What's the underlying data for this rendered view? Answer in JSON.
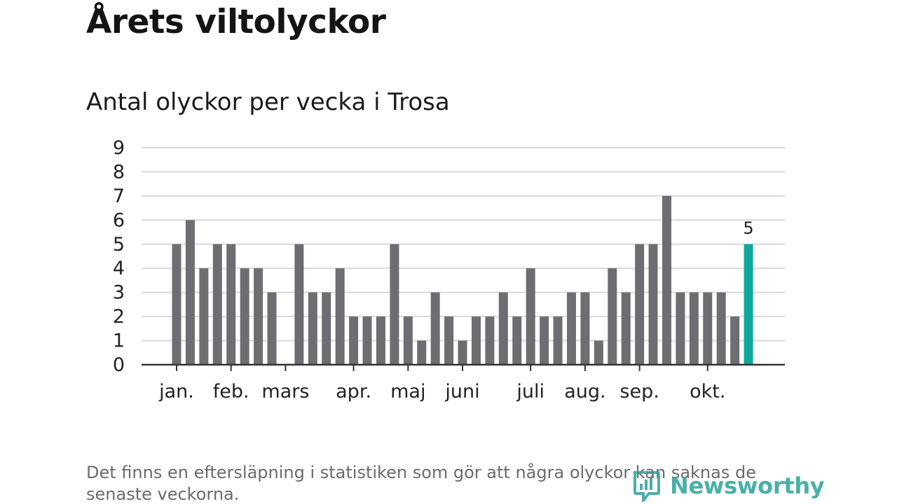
{
  "title": "Årets viltolyckor",
  "subtitle": "Antal olyckor per vecka i Trosa",
  "footnote": "Det finns en eftersläpning i statistiken som gör att några olyckor kan saknas de senaste veckorna.",
  "logo": {
    "text": "Newsworthy",
    "icon": "newsworthy-logo-icon"
  },
  "colors": {
    "bar": "#6e6d72",
    "highlight": "#0fa89c",
    "grid": "#d9d9d9",
    "axis": "#333333",
    "brand": "#2aa39a"
  },
  "chart_data": {
    "type": "bar",
    "title": "Antal olyckor per vecka i Trosa",
    "xlabel": "",
    "ylabel": "",
    "ylim": [
      0,
      9
    ],
    "yticks": [
      0,
      1,
      2,
      3,
      4,
      5,
      6,
      7,
      8,
      9
    ],
    "grid": true,
    "values": [
      5,
      6,
      4,
      5,
      5,
      4,
      4,
      3,
      0,
      5,
      3,
      3,
      4,
      2,
      2,
      2,
      5,
      2,
      1,
      3,
      2,
      1,
      2,
      2,
      3,
      2,
      4,
      2,
      2,
      3,
      3,
      1,
      4,
      3,
      5,
      5,
      7,
      3,
      3,
      3,
      3,
      2,
      5
    ],
    "highlight_last": true,
    "highlight_label": "5",
    "month_labels": [
      {
        "label": "jan.",
        "week": 1
      },
      {
        "label": "feb.",
        "week": 5
      },
      {
        "label": "mars",
        "week": 9
      },
      {
        "label": "apr.",
        "week": 14
      },
      {
        "label": "maj",
        "week": 18
      },
      {
        "label": "juni",
        "week": 22
      },
      {
        "label": "juli",
        "week": 27
      },
      {
        "label": "aug.",
        "week": 31
      },
      {
        "label": "sep.",
        "week": 35
      },
      {
        "label": "okt.",
        "week": 40
      }
    ]
  }
}
